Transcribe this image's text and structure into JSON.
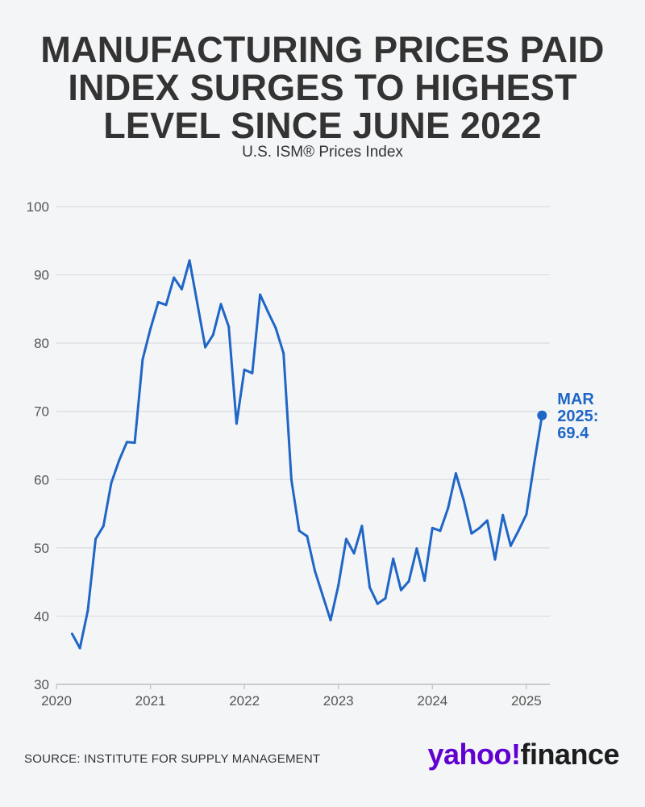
{
  "title_lines": [
    "MANUFACTURING PRICES PAID",
    "INDEX SURGES TO HIGHEST",
    "LEVEL SINCE JUNE 2022"
  ],
  "subtitle": "U.S. ISM® Prices Index",
  "source": "SOURCE: INSTITUTE FOR SUPPLY MANAGEMENT",
  "logo": {
    "yahoo": "yahoo!",
    "finance": "finance"
  },
  "colors": {
    "line": "#1f66c6",
    "grid": "#d9dce1",
    "background": "#f4f5f7",
    "logo_purple": "#6001d2"
  },
  "chart_data": {
    "type": "line",
    "ylim": [
      30,
      100
    ],
    "yticks": [
      30,
      40,
      50,
      60,
      70,
      80,
      90,
      100
    ],
    "xlim": [
      2020.0,
      2025.25
    ],
    "xticks": [
      "2020",
      "2021",
      "2022",
      "2023",
      "2024",
      "2025"
    ],
    "grid": true,
    "series": [
      {
        "values": [
          37.4,
          35.3,
          40.8,
          51.3,
          53.2,
          59.5,
          62.8,
          65.5,
          65.4,
          77.6,
          82.1,
          86.0,
          85.6,
          89.6,
          87.9,
          92.1,
          85.7,
          79.4,
          81.2,
          85.7,
          82.4,
          68.2,
          76.1,
          75.6,
          87.1,
          84.6,
          82.2,
          78.5,
          60.0,
          52.5,
          51.7,
          46.6,
          43.0,
          39.4,
          44.5,
          51.3,
          49.2,
          53.2,
          44.2,
          41.8,
          42.6,
          48.4,
          43.8,
          45.1,
          49.9,
          45.2,
          52.9,
          52.5,
          55.8,
          60.9,
          57.0,
          52.1,
          52.9,
          54.0,
          48.3,
          54.8,
          50.3,
          52.5,
          54.9,
          62.4,
          69.4
        ],
        "start": {
          "year": 2020,
          "month": 3
        }
      }
    ],
    "annotation": {
      "lines": [
        "MAR",
        "2025:",
        "69.4"
      ],
      "value": 69.4,
      "date": "2025-03"
    }
  }
}
